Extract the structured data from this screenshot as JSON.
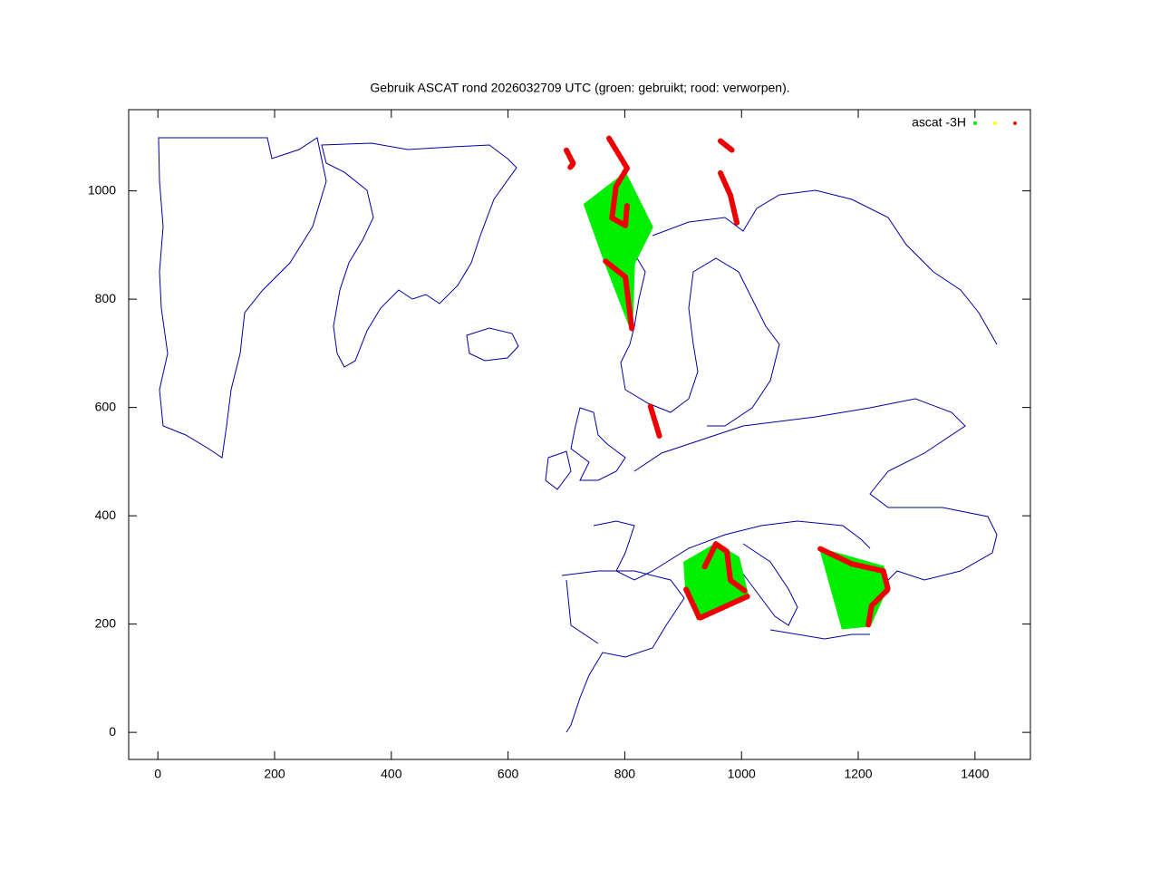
{
  "chart_data": {
    "type": "scatter",
    "title": "Gebruik ASCAT rond 2026032709 UTC (groen: gebruikt; rood: verworpen).",
    "xlim": [
      -50,
      1495
    ],
    "ylim": [
      -50,
      1150
    ],
    "xticks": [
      0,
      200,
      400,
      600,
      800,
      1000,
      1200,
      1400
    ],
    "yticks": [
      0,
      200,
      400,
      600,
      800,
      1000
    ],
    "legend": {
      "label": "ascat -3H",
      "position": "top-right",
      "colors": [
        "#00ee00",
        "#ffff00",
        "#ee0000"
      ]
    },
    "regions": [
      {
        "color": "#00ee00",
        "fill": true,
        "x": [
          731,
          801,
          847,
          816,
          812,
          767
        ],
        "y": [
          975,
          1033,
          933,
          866,
          741,
          866
        ]
      },
      {
        "color": "#00ee00",
        "fill": true,
        "x": [
          902,
          956,
          995,
          1010,
          925,
          905
        ],
        "y": [
          314,
          348,
          323,
          256,
          209,
          264
        ]
      },
      {
        "color": "#00ee00",
        "fill": true,
        "x": [
          1135,
          1243,
          1248,
          1220,
          1173
        ],
        "y": [
          339,
          306,
          264,
          197,
          192
        ]
      },
      {
        "color": "#ee0000",
        "fill": false,
        "x": [
          700,
          712,
          705
        ],
        "y": [
          1075,
          1050,
          1042
        ]
      },
      {
        "color": "#ee0000",
        "fill": false,
        "x": [
          773,
          804,
          785,
          778,
          801,
          804
        ],
        "y": [
          1097,
          1042,
          1008,
          950,
          936,
          975
        ]
      },
      {
        "color": "#ee0000",
        "fill": false,
        "x": [
          964,
          984
        ],
        "y": [
          1092,
          1075
        ]
      },
      {
        "color": "#ee0000",
        "fill": false,
        "x": [
          964,
          981,
          992
        ],
        "y": [
          1033,
          992,
          941
        ]
      },
      {
        "color": "#ee0000",
        "fill": false,
        "x": [
          767,
          801,
          812
        ],
        "y": [
          870,
          841,
          746
        ]
      },
      {
        "color": "#ee0000",
        "fill": false,
        "x": [
          844,
          860
        ],
        "y": [
          602,
          545
        ]
      },
      {
        "color": "#ee0000",
        "fill": false,
        "x": [
          905,
          928,
          1010
        ],
        "y": [
          264,
          211,
          251
        ]
      },
      {
        "color": "#ee0000",
        "fill": false,
        "x": [
          937,
          956,
          975,
          981,
          1006
        ],
        "y": [
          306,
          348,
          334,
          281,
          261
        ]
      },
      {
        "color": "#ee0000",
        "fill": false,
        "x": [
          1135,
          1189,
          1243,
          1251,
          1223,
          1217
        ],
        "y": [
          339,
          311,
          298,
          264,
          234,
          197
        ]
      }
    ]
  }
}
